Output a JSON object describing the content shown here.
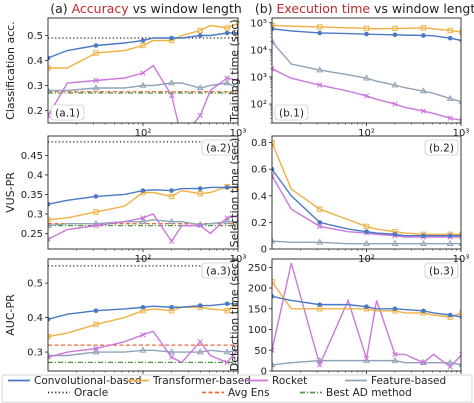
{
  "titles": {
    "left": {
      "pre": "(a) ",
      "hl": "Accuracy",
      "post": " vs window length",
      "hl_color": "#c0272d"
    },
    "right": {
      "pre": "(b) ",
      "hl": "Execution time",
      "post": " vs window length",
      "hl_color": "#c0272d"
    }
  },
  "legend": [
    {
      "label": "Convolutional-based",
      "color": "#4a78c4",
      "style": "solid"
    },
    {
      "label": "Transformer-based",
      "color": "#f0b040",
      "style": "solid"
    },
    {
      "label": "Rocket",
      "color": "#cc77dd",
      "style": "solid"
    },
    {
      "label": "Feature-based",
      "color": "#8fa3b8",
      "style": "solid"
    },
    {
      "label": "Oracle",
      "color": "#222222",
      "style": "dotted"
    },
    {
      "label": "Avg Ens",
      "color": "#e9683d",
      "style": "dashed"
    },
    {
      "label": "Best AD method",
      "color": "#4b9a3b",
      "style": "dashdot"
    }
  ],
  "chart_data": [
    {
      "id": "a1",
      "panel_label": "(a.1)",
      "type": "line",
      "ylabel": "Classification acc.",
      "xscale": "log",
      "xlim": [
        10,
        1000
      ],
      "ylim": [
        0.15,
        0.57
      ],
      "yticks": [
        0.2,
        0.3,
        0.4,
        0.5
      ],
      "x": [
        10,
        16,
        32,
        64,
        100,
        128,
        200,
        256,
        400,
        512,
        768,
        1024
      ],
      "series": [
        {
          "name": "Convolutional-based",
          "values": [
            0.41,
            0.44,
            0.46,
            0.47,
            0.48,
            0.49,
            0.49,
            0.49,
            0.5,
            0.5,
            0.51,
            0.51
          ]
        },
        {
          "name": "Transformer-based",
          "values": [
            0.37,
            0.37,
            0.43,
            0.44,
            0.46,
            0.48,
            0.48,
            0.5,
            0.52,
            0.54,
            0.53,
            0.55
          ]
        },
        {
          "name": "Rocket",
          "values": [
            0.18,
            0.31,
            0.32,
            0.33,
            0.35,
            0.38,
            0.26,
            0.09,
            0.18,
            0.28,
            0.33,
            0.32
          ]
        },
        {
          "name": "Feature-based",
          "values": [
            0.28,
            0.28,
            0.29,
            0.29,
            0.3,
            0.3,
            0.31,
            0.31,
            0.29,
            0.3,
            0.31,
            0.29
          ]
        }
      ],
      "hlines": [
        {
          "name": "Oracle",
          "value": 0.49
        },
        {
          "name": "Avg Ens",
          "value": 0.275
        },
        {
          "name": "Best AD method",
          "value": 0.27
        }
      ],
      "xticklabels": [
        {
          "value": 100,
          "label": "10²"
        },
        {
          "value": 1000,
          "label": "10³"
        }
      ]
    },
    {
      "id": "a2",
      "panel_label": "(a.2)",
      "type": "line",
      "ylabel": "VUS-PR",
      "xscale": "log",
      "xlim": [
        10,
        1000
      ],
      "ylim": [
        0.21,
        0.5
      ],
      "yticks": [
        0.25,
        0.3,
        0.35,
        0.4,
        0.45
      ],
      "x": [
        10,
        16,
        32,
        64,
        100,
        128,
        200,
        256,
        400,
        512,
        768,
        1024
      ],
      "series": [
        {
          "name": "Convolutional-based",
          "values": [
            0.325,
            0.335,
            0.345,
            0.35,
            0.36,
            0.362,
            0.36,
            0.365,
            0.365,
            0.368,
            0.368,
            0.37
          ]
        },
        {
          "name": "Transformer-based",
          "values": [
            0.285,
            0.29,
            0.305,
            0.32,
            0.355,
            0.355,
            0.345,
            0.36,
            0.352,
            0.355,
            0.37,
            0.365
          ]
        },
        {
          "name": "Rocket",
          "values": [
            0.235,
            0.26,
            0.27,
            0.28,
            0.29,
            0.3,
            0.23,
            0.27,
            0.27,
            0.25,
            0.29,
            0.295
          ]
        },
        {
          "name": "Feature-based",
          "values": [
            0.27,
            0.275,
            0.275,
            0.28,
            0.28,
            0.285,
            0.28,
            0.28,
            0.272,
            0.275,
            0.28,
            0.28
          ]
        }
      ],
      "hlines": [
        {
          "name": "Oracle",
          "value": 0.485
        },
        {
          "name": "Avg Ens",
          "value": 0.275
        },
        {
          "name": "Best AD method",
          "value": 0.27
        }
      ],
      "xticklabels": [
        {
          "value": 100,
          "label": "10²"
        },
        {
          "value": 1000,
          "label": "10³"
        }
      ]
    },
    {
      "id": "a3",
      "panel_label": "(a.3)",
      "type": "line",
      "ylabel": "AUC-PR",
      "xscale": "log",
      "xlim": [
        10,
        1000
      ],
      "ylim": [
        0.245,
        0.57
      ],
      "yticks": [
        0.3,
        0.4,
        0.5
      ],
      "x": [
        10,
        16,
        32,
        64,
        100,
        128,
        200,
        256,
        400,
        512,
        768,
        1024
      ],
      "series": [
        {
          "name": "Convolutional-based",
          "values": [
            0.395,
            0.41,
            0.42,
            0.425,
            0.43,
            0.433,
            0.43,
            0.43,
            0.435,
            0.435,
            0.44,
            0.44
          ]
        },
        {
          "name": "Transformer-based",
          "values": [
            0.345,
            0.355,
            0.38,
            0.4,
            0.42,
            0.425,
            0.42,
            0.43,
            0.43,
            0.425,
            0.42,
            0.44
          ]
        },
        {
          "name": "Rocket",
          "values": [
            0.285,
            0.3,
            0.31,
            0.33,
            0.35,
            0.36,
            0.285,
            0.27,
            0.33,
            0.29,
            0.27,
            0.31
          ]
        },
        {
          "name": "Feature-based",
          "values": [
            0.29,
            0.29,
            0.3,
            0.3,
            0.305,
            0.305,
            0.3,
            0.3,
            0.3,
            0.305,
            0.3,
            0.305
          ]
        }
      ],
      "hlines": [
        {
          "name": "Oracle",
          "value": 0.55
        },
        {
          "name": "Avg Ens",
          "value": 0.32
        },
        {
          "name": "Best AD method",
          "value": 0.27
        }
      ],
      "xticklabels": [
        {
          "value": 100,
          "label": "10²"
        },
        {
          "value": 1000,
          "label": "10³"
        }
      ]
    },
    {
      "id": "b1",
      "panel_label": "(b.1)",
      "type": "line",
      "ylabel": "Training time (sec)",
      "xscale": "log",
      "yscale": "log",
      "xlim": [
        10,
        1000
      ],
      "ylim": [
        20,
        150000
      ],
      "yticks": [
        100,
        1000,
        10000,
        100000
      ],
      "yticklabels": [
        "10²",
        "10³",
        "10⁴",
        "10⁵"
      ],
      "x": [
        10,
        16,
        32,
        64,
        100,
        128,
        200,
        256,
        400,
        512,
        768,
        1024
      ],
      "series": [
        {
          "name": "Convolutional-based",
          "values": [
            60000,
            50000,
            42000,
            40000,
            38000,
            37000,
            36000,
            35000,
            34000,
            33000,
            27000,
            22000
          ]
        },
        {
          "name": "Transformer-based",
          "values": [
            80000,
            75000,
            70000,
            65000,
            62000,
            60000,
            62000,
            62000,
            65000,
            60000,
            52000,
            45000
          ]
        },
        {
          "name": "Rocket",
          "values": [
            2000,
            900,
            500,
            300,
            200,
            150,
            100,
            75,
            55,
            45,
            30,
            25
          ]
        },
        {
          "name": "Feature-based",
          "values": [
            20000,
            3000,
            1800,
            1200,
            900,
            700,
            500,
            400,
            300,
            250,
            160,
            120
          ]
        }
      ],
      "xticklabels": [
        {
          "value": 100,
          "label": "10²"
        },
        {
          "value": 1000,
          "label": "10³"
        }
      ]
    },
    {
      "id": "b2",
      "panel_label": "(b.2)",
      "type": "line",
      "ylabel": "Selection time (sec)",
      "xscale": "log",
      "xlim": [
        10,
        1000
      ],
      "ylim": [
        0,
        0.85
      ],
      "yticks": [
        0.0,
        0.2,
        0.4,
        0.6,
        0.8
      ],
      "x": [
        10,
        16,
        32,
        64,
        100,
        128,
        200,
        256,
        400,
        512,
        768,
        1024
      ],
      "series": [
        {
          "name": "Convolutional-based",
          "values": [
            0.6,
            0.4,
            0.2,
            0.15,
            0.13,
            0.12,
            0.11,
            0.1,
            0.1,
            0.1,
            0.1,
            0.1
          ]
        },
        {
          "name": "Transformer-based",
          "values": [
            0.8,
            0.45,
            0.3,
            0.22,
            0.17,
            0.15,
            0.13,
            0.12,
            0.11,
            0.11,
            0.11,
            0.11
          ]
        },
        {
          "name": "Rocket",
          "values": [
            0.55,
            0.3,
            0.17,
            0.13,
            0.12,
            0.11,
            0.1,
            0.09,
            0.09,
            0.09,
            0.09,
            0.09
          ]
        },
        {
          "name": "Feature-based",
          "values": [
            0.06,
            0.05,
            0.05,
            0.04,
            0.04,
            0.04,
            0.04,
            0.04,
            0.04,
            0.04,
            0.04,
            0.04
          ]
        }
      ],
      "xticklabels": [
        {
          "value": 100,
          "label": "10²"
        },
        {
          "value": 1000,
          "label": "10³"
        }
      ]
    },
    {
      "id": "b3",
      "panel_label": "(b.3)",
      "type": "line",
      "ylabel": "Detection time (sec)",
      "xscale": "log",
      "xlim": [
        10,
        1000
      ],
      "ylim": [
        0,
        270
      ],
      "yticks": [
        0,
        50,
        100,
        150,
        200,
        250
      ],
      "x": [
        10,
        16,
        32,
        64,
        100,
        128,
        200,
        256,
        400,
        512,
        768,
        1024
      ],
      "series": [
        {
          "name": "Convolutional-based",
          "values": [
            180,
            170,
            160,
            160,
            155,
            150,
            150,
            148,
            145,
            140,
            135,
            130
          ]
        },
        {
          "name": "Transformer-based",
          "values": [
            215,
            150,
            150,
            150,
            150,
            145,
            145,
            140,
            140,
            135,
            130,
            140
          ]
        },
        {
          "name": "Rocket",
          "values": [
            50,
            260,
            15,
            170,
            30,
            170,
            40,
            40,
            20,
            40,
            10,
            40
          ]
        },
        {
          "name": "Feature-based",
          "values": [
            15,
            20,
            25,
            25,
            25,
            25,
            25,
            20,
            20,
            20,
            20,
            15
          ]
        }
      ],
      "xticklabels": [
        {
          "value": 100,
          "label": "10²"
        },
        {
          "value": 1000,
          "label": "10³"
        }
      ]
    }
  ]
}
